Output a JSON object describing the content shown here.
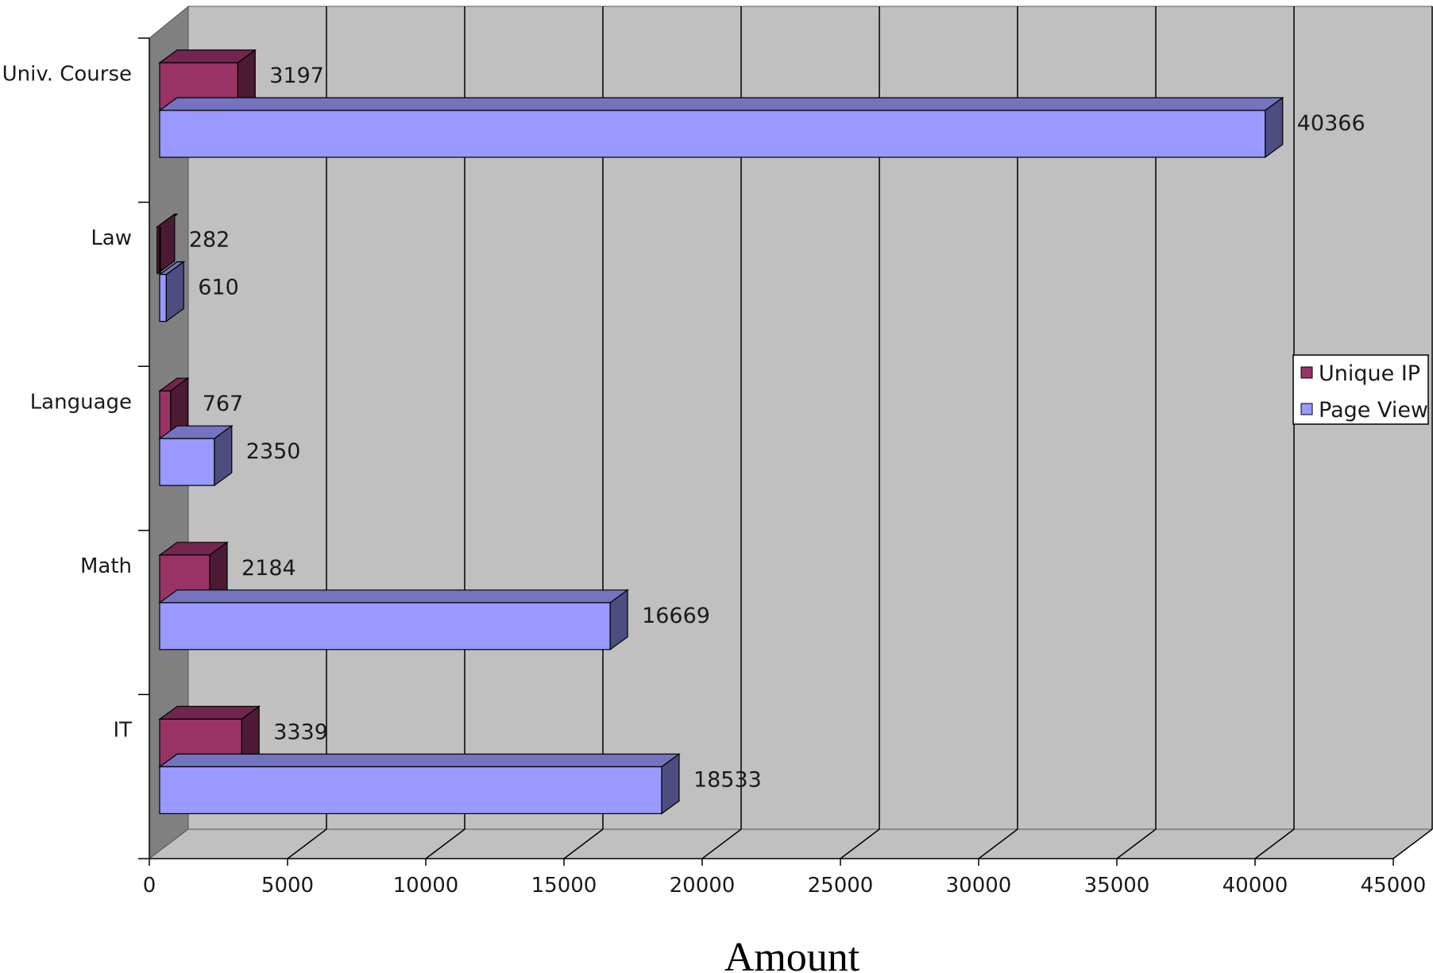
{
  "chart_data": {
    "type": "bar",
    "orientation": "horizontal",
    "style": "3d",
    "categories": [
      "Univ. Course",
      "Law",
      "Language",
      "Math",
      "IT"
    ],
    "series": [
      {
        "name": "Unique IP",
        "values": [
          3197,
          282,
          767,
          2184,
          3339
        ],
        "color": "#993366"
      },
      {
        "name": "Page View",
        "values": [
          40366,
          610,
          2350,
          16669,
          18533
        ],
        "color": "#9999ff"
      }
    ],
    "xlabel": "Amount",
    "ylabel": "",
    "xlim": [
      0,
      45000
    ],
    "x_ticks": [
      "0",
      "5000",
      "10000",
      "15000",
      "20000",
      "25000",
      "30000",
      "35000",
      "40000",
      "45000"
    ],
    "grid": true,
    "legend_position": "right",
    "data_labels": true,
    "colors": {
      "plot_background": "#c0c0c0",
      "side_wall": "#808080",
      "gridline": "#000000"
    }
  }
}
